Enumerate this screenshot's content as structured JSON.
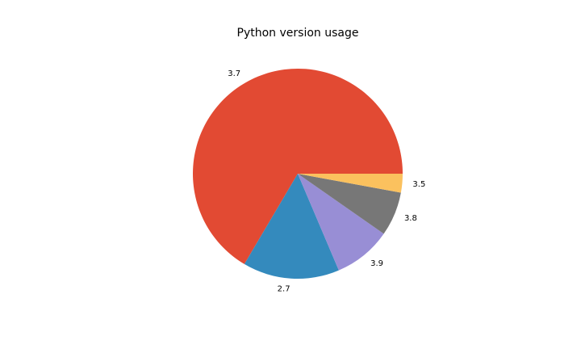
{
  "chart_data": {
    "type": "pie",
    "title": "Python version usage",
    "categories": [
      "3.7",
      "2.7",
      "3.9",
      "3.8",
      "3.5"
    ],
    "values": [
      66.5,
      14.9,
      8.9,
      6.8,
      2.9
    ],
    "colors": [
      "#E24A33",
      "#348ABD",
      "#988ED5",
      "#777777",
      "#FBC15E"
    ]
  }
}
